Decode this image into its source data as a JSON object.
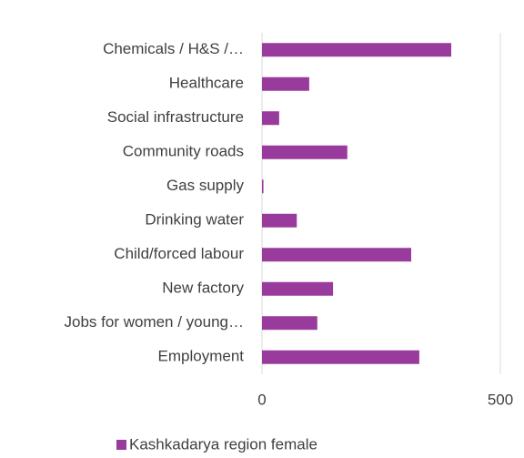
{
  "chart_data": {
    "type": "barh",
    "categories": [
      "Chemicals / H&S /…",
      "Healthcare",
      "Social infrastructure",
      "Community roads",
      "Gas supply",
      "Drinking water",
      "Child/forced labour",
      "New factory",
      "Jobs for women / young…",
      "Employment"
    ],
    "series": [
      {
        "name": "Kashkadarya region female",
        "color": "#993b9c",
        "values": [
          397,
          99,
          36,
          179,
          3,
          73,
          313,
          149,
          116,
          330
        ]
      }
    ],
    "xlim": [
      0,
      500
    ],
    "xticks": [
      0,
      500
    ],
    "grid": true,
    "legend": "bottom"
  }
}
